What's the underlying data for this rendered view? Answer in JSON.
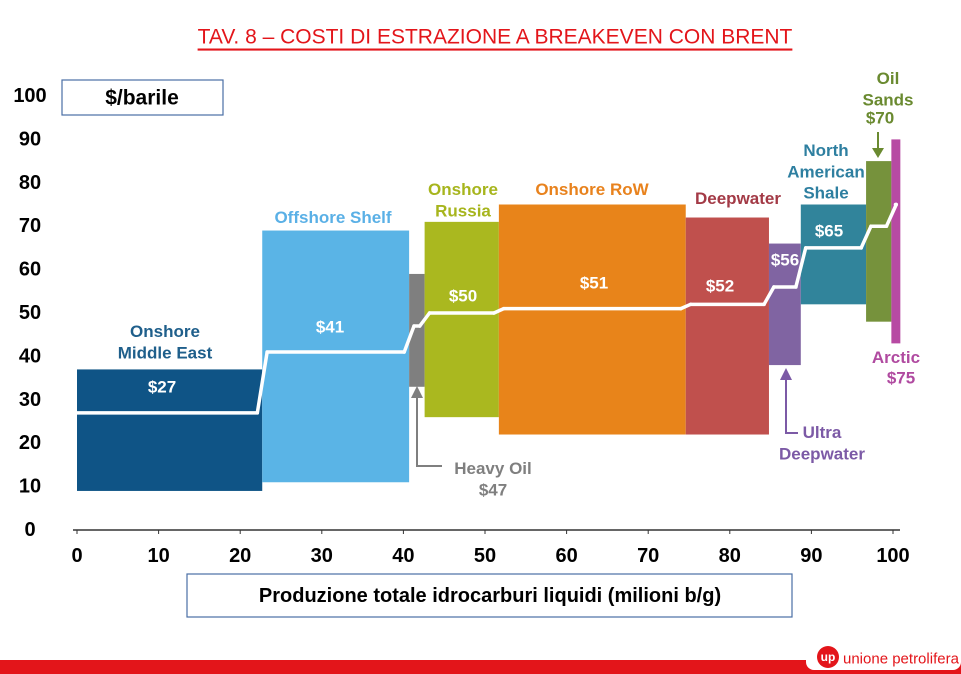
{
  "chart_data": {
    "type": "range-steps",
    "title": "TAV. 8 – COSTI DI ESTRAZIONE A BREAKEVEN CON BRENT",
    "y_label": "$/barile",
    "x_label": "Produzione totale idrocarburi liquidi (milioni b/g)",
    "xlim": [
      0,
      100
    ],
    "ylim": [
      0,
      100
    ],
    "xticks": [
      0,
      10,
      20,
      30,
      40,
      50,
      60,
      70,
      80,
      90,
      100
    ],
    "yticks": [
      0,
      10,
      20,
      30,
      40,
      50,
      60,
      70,
      80,
      90,
      100
    ],
    "segments": [
      {
        "name": [
          "Onshore",
          "Middle East"
        ],
        "x": [
          0,
          22.7
        ],
        "low": 9,
        "high": 37,
        "breakeven": 27,
        "breakeven_label": "$27",
        "color": "#0f5486",
        "label_color": "#1f5f8b"
      },
      {
        "name": [
          "Offshore Shelf"
        ],
        "x": [
          22.7,
          40.7
        ],
        "low": 11,
        "high": 69,
        "breakeven": 41,
        "breakeven_label": "$41",
        "color": "#5ab4e6",
        "label_color": "#5ab0e6"
      },
      {
        "name": [
          "Heavy Oil"
        ],
        "x": [
          40.7,
          42.6
        ],
        "low": 33,
        "high": 59,
        "breakeven": 47,
        "breakeven_label": "$47",
        "color": "#7f7f7f",
        "label_color": "#7f7f7f"
      },
      {
        "name": [
          "Onshore",
          "Russia"
        ],
        "x": [
          42.6,
          51.7
        ],
        "low": 26,
        "high": 71,
        "breakeven": 50,
        "breakeven_label": "$50",
        "color": "#aab81f",
        "label_color": "#a7b51d"
      },
      {
        "name": [
          "Onshore RoW"
        ],
        "x": [
          51.7,
          74.6
        ],
        "low": 22,
        "high": 75,
        "breakeven": 51,
        "breakeven_label": "$51",
        "color": "#e8841a",
        "label_color": "#e8821d"
      },
      {
        "name": [
          "Deepwater"
        ],
        "x": [
          74.6,
          84.8
        ],
        "low": 22,
        "high": 72,
        "breakeven": 52,
        "breakeven_label": "$52",
        "color": "#c0504d",
        "label_color": "#a33a46"
      },
      {
        "name": [
          "Ultra",
          "Deepwater"
        ],
        "x": [
          84.8,
          88.7
        ],
        "low": 38,
        "high": 66,
        "breakeven": 56,
        "breakeven_label": "$56",
        "color": "#8064a2",
        "label_color": "#7c5aa6"
      },
      {
        "name": [
          "North",
          "American",
          "Shale"
        ],
        "x": [
          88.7,
          96.7
        ],
        "low": 52,
        "high": 75,
        "breakeven": 65,
        "breakeven_label": "$65",
        "color": "#31849b",
        "label_color": "#2e7fa0"
      },
      {
        "name": [
          "Oil",
          "Sands"
        ],
        "x": [
          96.7,
          99.8
        ],
        "low": 48,
        "high": 85,
        "breakeven": 70,
        "breakeven_label": "$70",
        "color": "#76923c",
        "label_color": "#6a8a30"
      },
      {
        "name": [
          "Arctic"
        ],
        "x": [
          99.8,
          100.9
        ],
        "low": 43,
        "high": 90,
        "breakeven": 75,
        "breakeven_label": "$75",
        "color": "#b74aa3",
        "label_color": "#b04aa0"
      }
    ]
  },
  "footer": {
    "logo_mark": "up",
    "logo_text": "unione petrolifera"
  }
}
